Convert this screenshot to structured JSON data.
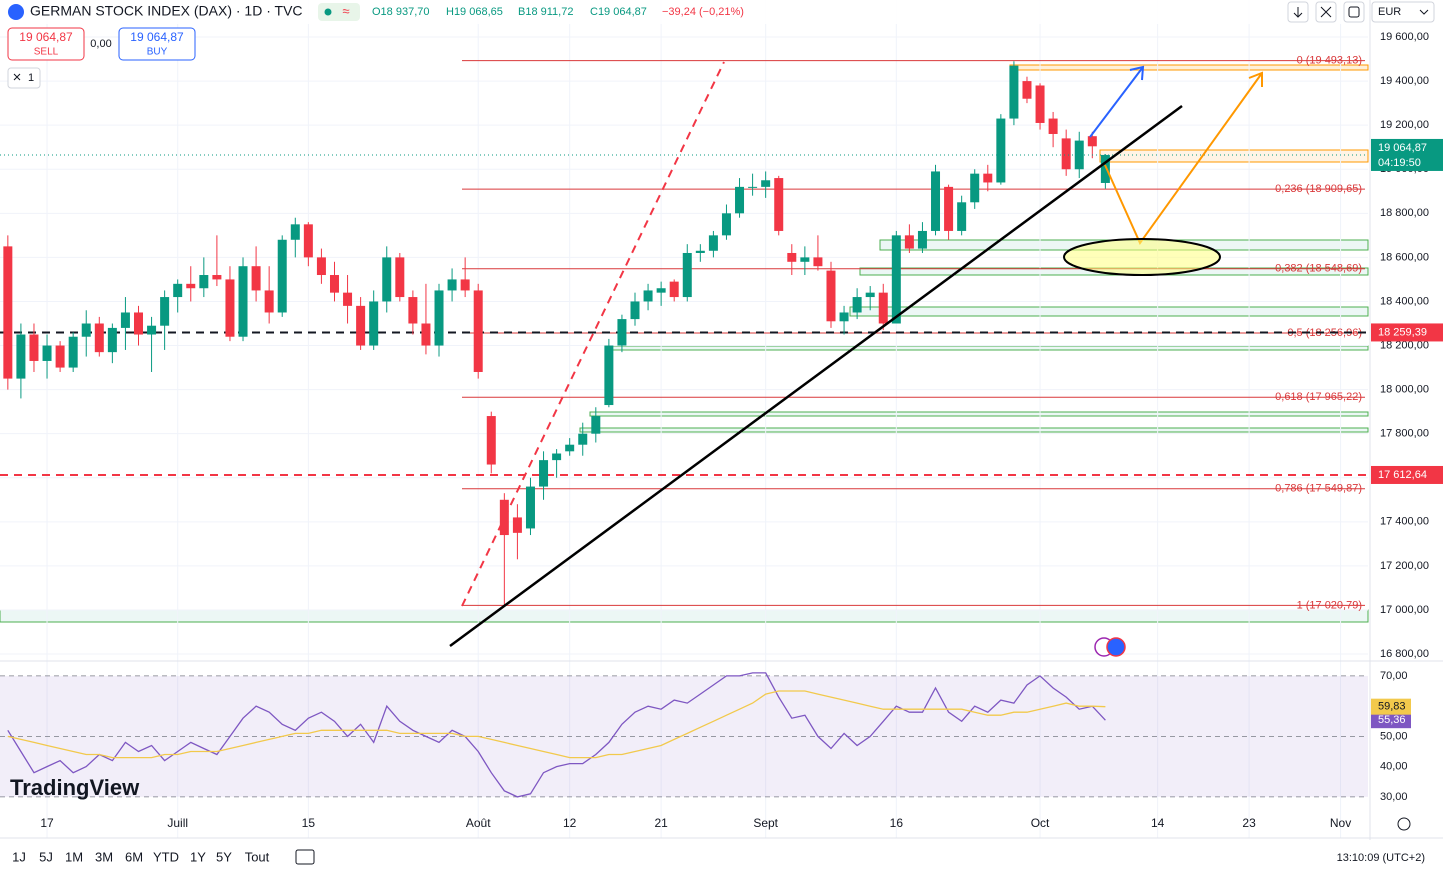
{
  "header": {
    "symbol": "GERMAN STOCK INDEX (DAX) · 1D · TVC",
    "ohlc": [
      "O18 937,70",
      "H19 068,65",
      "B18 911,72",
      "C19 064,87"
    ],
    "change": "−39,24 (−0,21%)",
    "sell_price": "19 064,87",
    "sell": "SELL",
    "spread": "0,00",
    "buy_price": "19 064,87",
    "buy": "BUY",
    "currency": "EUR",
    "layout_count": "1"
  },
  "logo": "TradingView",
  "footer": {
    "ranges": [
      "1J",
      "5J",
      "1M",
      "3M",
      "6M",
      "YTD",
      "1Y",
      "5Y",
      "Tout"
    ],
    "time": "13:10:09 (UTC+2)"
  },
  "chart_data": [
    {
      "type": "candlestick",
      "up_color": "#089981",
      "down_color": "#f23645",
      "grid": true,
      "xlim": [
        -0.6,
        104.1
      ],
      "ylim": [
        16773,
        19768
      ],
      "xticks": [
        {
          "value": 3,
          "label": "17"
        },
        {
          "value": 13,
          "label": "Juill"
        },
        {
          "value": 23,
          "label": "15"
        },
        {
          "value": 36,
          "label": "Août"
        },
        {
          "value": 43,
          "label": "12"
        },
        {
          "value": 50,
          "label": "21"
        },
        {
          "value": 58,
          "label": "Sept"
        },
        {
          "value": 68,
          "label": "16"
        },
        {
          "value": 79,
          "label": "Oct"
        },
        {
          "value": 88,
          "label": "14"
        },
        {
          "value": 95,
          "label": "23"
        },
        {
          "value": 102,
          "label": "Nov"
        }
      ],
      "yticks": [
        {
          "value": 19600,
          "label": "19 600,00"
        },
        {
          "value": 19400,
          "label": "19 400,00"
        },
        {
          "value": 19200,
          "label": "19 200,00"
        },
        {
          "value": 19000,
          "label": "19 000,00"
        },
        {
          "value": 18800,
          "label": "18 800,00"
        },
        {
          "value": 18600,
          "label": "18 600,00"
        },
        {
          "value": 18400,
          "label": "18 400,00"
        },
        {
          "value": 18200,
          "label": "18 200,00"
        },
        {
          "value": 18000,
          "label": "18 000,00"
        },
        {
          "value": 17800,
          "label": "17 800,00"
        },
        {
          "value": 17600,
          "label": "17 600,00"
        },
        {
          "value": 17400,
          "label": "17 400,00"
        },
        {
          "value": 17200,
          "label": "17 200,00"
        },
        {
          "value": 17000,
          "label": "17 000,00"
        },
        {
          "value": 16800,
          "label": "16 800,00"
        }
      ],
      "open": [
        18650,
        18050,
        18250,
        18130,
        18200,
        18100,
        18240,
        18300,
        18170,
        18280,
        18350,
        18250,
        18290,
        18420,
        18480,
        18460,
        18520,
        18500,
        18240,
        18560,
        18450,
        18350,
        18680,
        18750,
        18600,
        18520,
        18440,
        18380,
        18200,
        18400,
        18600,
        18420,
        18300,
        18200,
        18450,
        18500,
        18450,
        17880,
        17500,
        17420,
        17370,
        17560,
        17680,
        17720,
        17750,
        17800,
        17930,
        18200,
        18320,
        18400,
        18440,
        18490,
        18420,
        18620,
        18630,
        18700,
        18800,
        18920,
        18920,
        18960,
        18620,
        18580,
        18600,
        18540,
        18310,
        18350,
        18420,
        18440,
        18300,
        18700,
        18640,
        18720,
        18920,
        18720,
        18850,
        18980,
        18940,
        19230,
        19400,
        19380,
        19230,
        19140,
        19000,
        19150,
        18937.7
      ],
      "high": [
        18700,
        18300,
        18300,
        18250,
        18220,
        18260,
        18360,
        18330,
        18300,
        18420,
        18380,
        18330,
        18450,
        18500,
        18560,
        18600,
        18700,
        18560,
        18600,
        18650,
        18560,
        18700,
        18780,
        18760,
        18640,
        18580,
        18520,
        18420,
        18450,
        18650,
        18620,
        18450,
        18480,
        18480,
        18550,
        18600,
        18480,
        17900,
        17530,
        17480,
        17600,
        17720,
        17730,
        17780,
        17850,
        17920,
        18230,
        18340,
        18440,
        18480,
        18490,
        18500,
        18660,
        18660,
        18720,
        18840,
        18960,
        18980,
        18990,
        18970,
        18660,
        18650,
        18700,
        18580,
        18380,
        18460,
        18470,
        18480,
        18720,
        18750,
        18760,
        19020,
        18930,
        18880,
        19000,
        19020,
        19250,
        19490,
        19420,
        19390,
        19260,
        19180,
        19170,
        19170,
        19068.65
      ],
      "low": [
        18000,
        17960,
        18080,
        18050,
        18080,
        18080,
        18150,
        18150,
        18120,
        18180,
        18200,
        18080,
        18180,
        18350,
        18400,
        18420,
        18470,
        18220,
        18220,
        18400,
        18300,
        18330,
        18600,
        18560,
        18480,
        18400,
        18300,
        18180,
        18180,
        18350,
        18400,
        18250,
        18160,
        18150,
        18400,
        18420,
        18050,
        17620,
        17020,
        17230,
        17340,
        17500,
        17600,
        17700,
        17700,
        17760,
        17920,
        18170,
        18290,
        18360,
        18380,
        18400,
        18400,
        18580,
        18600,
        18680,
        18780,
        18880,
        18870,
        18700,
        18520,
        18520,
        18540,
        18280,
        18250,
        18320,
        18360,
        18270,
        18300,
        18620,
        18620,
        18700,
        18680,
        18700,
        18820,
        18900,
        18930,
        19200,
        19300,
        19180,
        19100,
        18970,
        18960,
        19050,
        18911.72
      ],
      "close": [
        18050,
        18250,
        18130,
        18200,
        18100,
        18240,
        18300,
        18170,
        18280,
        18350,
        18250,
        18290,
        18420,
        18480,
        18460,
        18520,
        18500,
        18240,
        18560,
        18450,
        18350,
        18680,
        18750,
        18600,
        18520,
        18440,
        18380,
        18200,
        18400,
        18600,
        18420,
        18300,
        18200,
        18450,
        18500,
        18450,
        18080,
        17660,
        17340,
        17350,
        17560,
        17680,
        17710,
        17750,
        17800,
        17880,
        18200,
        18320,
        18400,
        18450,
        18460,
        18420,
        18620,
        18630,
        18700,
        18800,
        18920,
        18920,
        18950,
        18720,
        18580,
        18600,
        18560,
        18310,
        18350,
        18420,
        18440,
        18300,
        18700,
        18640,
        18720,
        18990,
        18720,
        18850,
        18980,
        18940,
        19230,
        19470,
        19320,
        19210,
        19160,
        19000,
        19130,
        19104.11,
        19064.87
      ],
      "levels": [
        {
          "value": 19493.13,
          "label": "0 (19 493,13)"
        },
        {
          "value": 18909.65,
          "label": "0,236 (18 909,65)"
        },
        {
          "value": 18548.69,
          "label": "0,382 (18 548,69)"
        },
        {
          "value": 18256.96,
          "label": "0,5 (18 256,96)"
        },
        {
          "value": 17965.22,
          "label": "0,618 (17 965,22)"
        },
        {
          "value": 17549.87,
          "label": "0,786 (17 549,87)"
        },
        {
          "value": 17020.79,
          "label": "1 (17 020,79)"
        }
      ],
      "level_color": "#d9383a",
      "price_lines": [
        {
          "value": 18259.39,
          "label": "18 259,39",
          "color": "#131722"
        },
        {
          "value": 17612.64,
          "label": "17 612,64",
          "color": "#f23645"
        }
      ],
      "last_price": {
        "value": 19064.87,
        "label": "19 064,87",
        "countdown": "04:19:50",
        "color": "#089981"
      }
    },
    {
      "type": "line",
      "xlim": [
        -0.6,
        104.1
      ],
      "ylim": [
        16.4,
        74.6
      ],
      "yticks": [
        {
          "value": 70,
          "label": "70,00"
        },
        {
          "value": 50,
          "label": "50,00"
        },
        {
          "value": 40,
          "label": "40,00"
        },
        {
          "value": 30,
          "label": "30,00"
        }
      ],
      "dashed_levels": [
        70,
        50,
        30
      ],
      "band": [
        30,
        70
      ],
      "band_color": "#7e57c2",
      "series": [
        {
          "color": "#7e57c2",
          "last_label": "55,36",
          "values": [
            52,
            45,
            38,
            40,
            42,
            38,
            40,
            44,
            42,
            48,
            45,
            47,
            42,
            45,
            48,
            46,
            44,
            50,
            56,
            60,
            58,
            54,
            52,
            56,
            58,
            55,
            50,
            54,
            48,
            60,
            55,
            52,
            50,
            48,
            52,
            50,
            45,
            38,
            32,
            30,
            31,
            38,
            40,
            41,
            41,
            44,
            48,
            54,
            58,
            60,
            59,
            62,
            61,
            64,
            67,
            70,
            70,
            71,
            71,
            63,
            56,
            57,
            50,
            46,
            51,
            47,
            50,
            55,
            60,
            58,
            58,
            66,
            58,
            55,
            60,
            58,
            62,
            61,
            67,
            70,
            66,
            63,
            59,
            60,
            55.36
          ]
        },
        {
          "color": "#f2c94c",
          "last_label": "59,83",
          "values": [
            50,
            49,
            48,
            47,
            46,
            45,
            44,
            44,
            43,
            43,
            43,
            43,
            44,
            44,
            45,
            45,
            45,
            46,
            47,
            48,
            49,
            50,
            51,
            51,
            52,
            52,
            52,
            52,
            52,
            52,
            51,
            51,
            51,
            51,
            51,
            50,
            50,
            49,
            48,
            47,
            46,
            45,
            44,
            43,
            43,
            43,
            44,
            44,
            45,
            46,
            47,
            49,
            51,
            53,
            55,
            57,
            59,
            61,
            64,
            65,
            65,
            65,
            64,
            63,
            62,
            61,
            60,
            59,
            59,
            59,
            59,
            59,
            59,
            59,
            58,
            57,
            57,
            58,
            58,
            59,
            60,
            61,
            60,
            60,
            59.83
          ]
        }
      ]
    }
  ]
}
